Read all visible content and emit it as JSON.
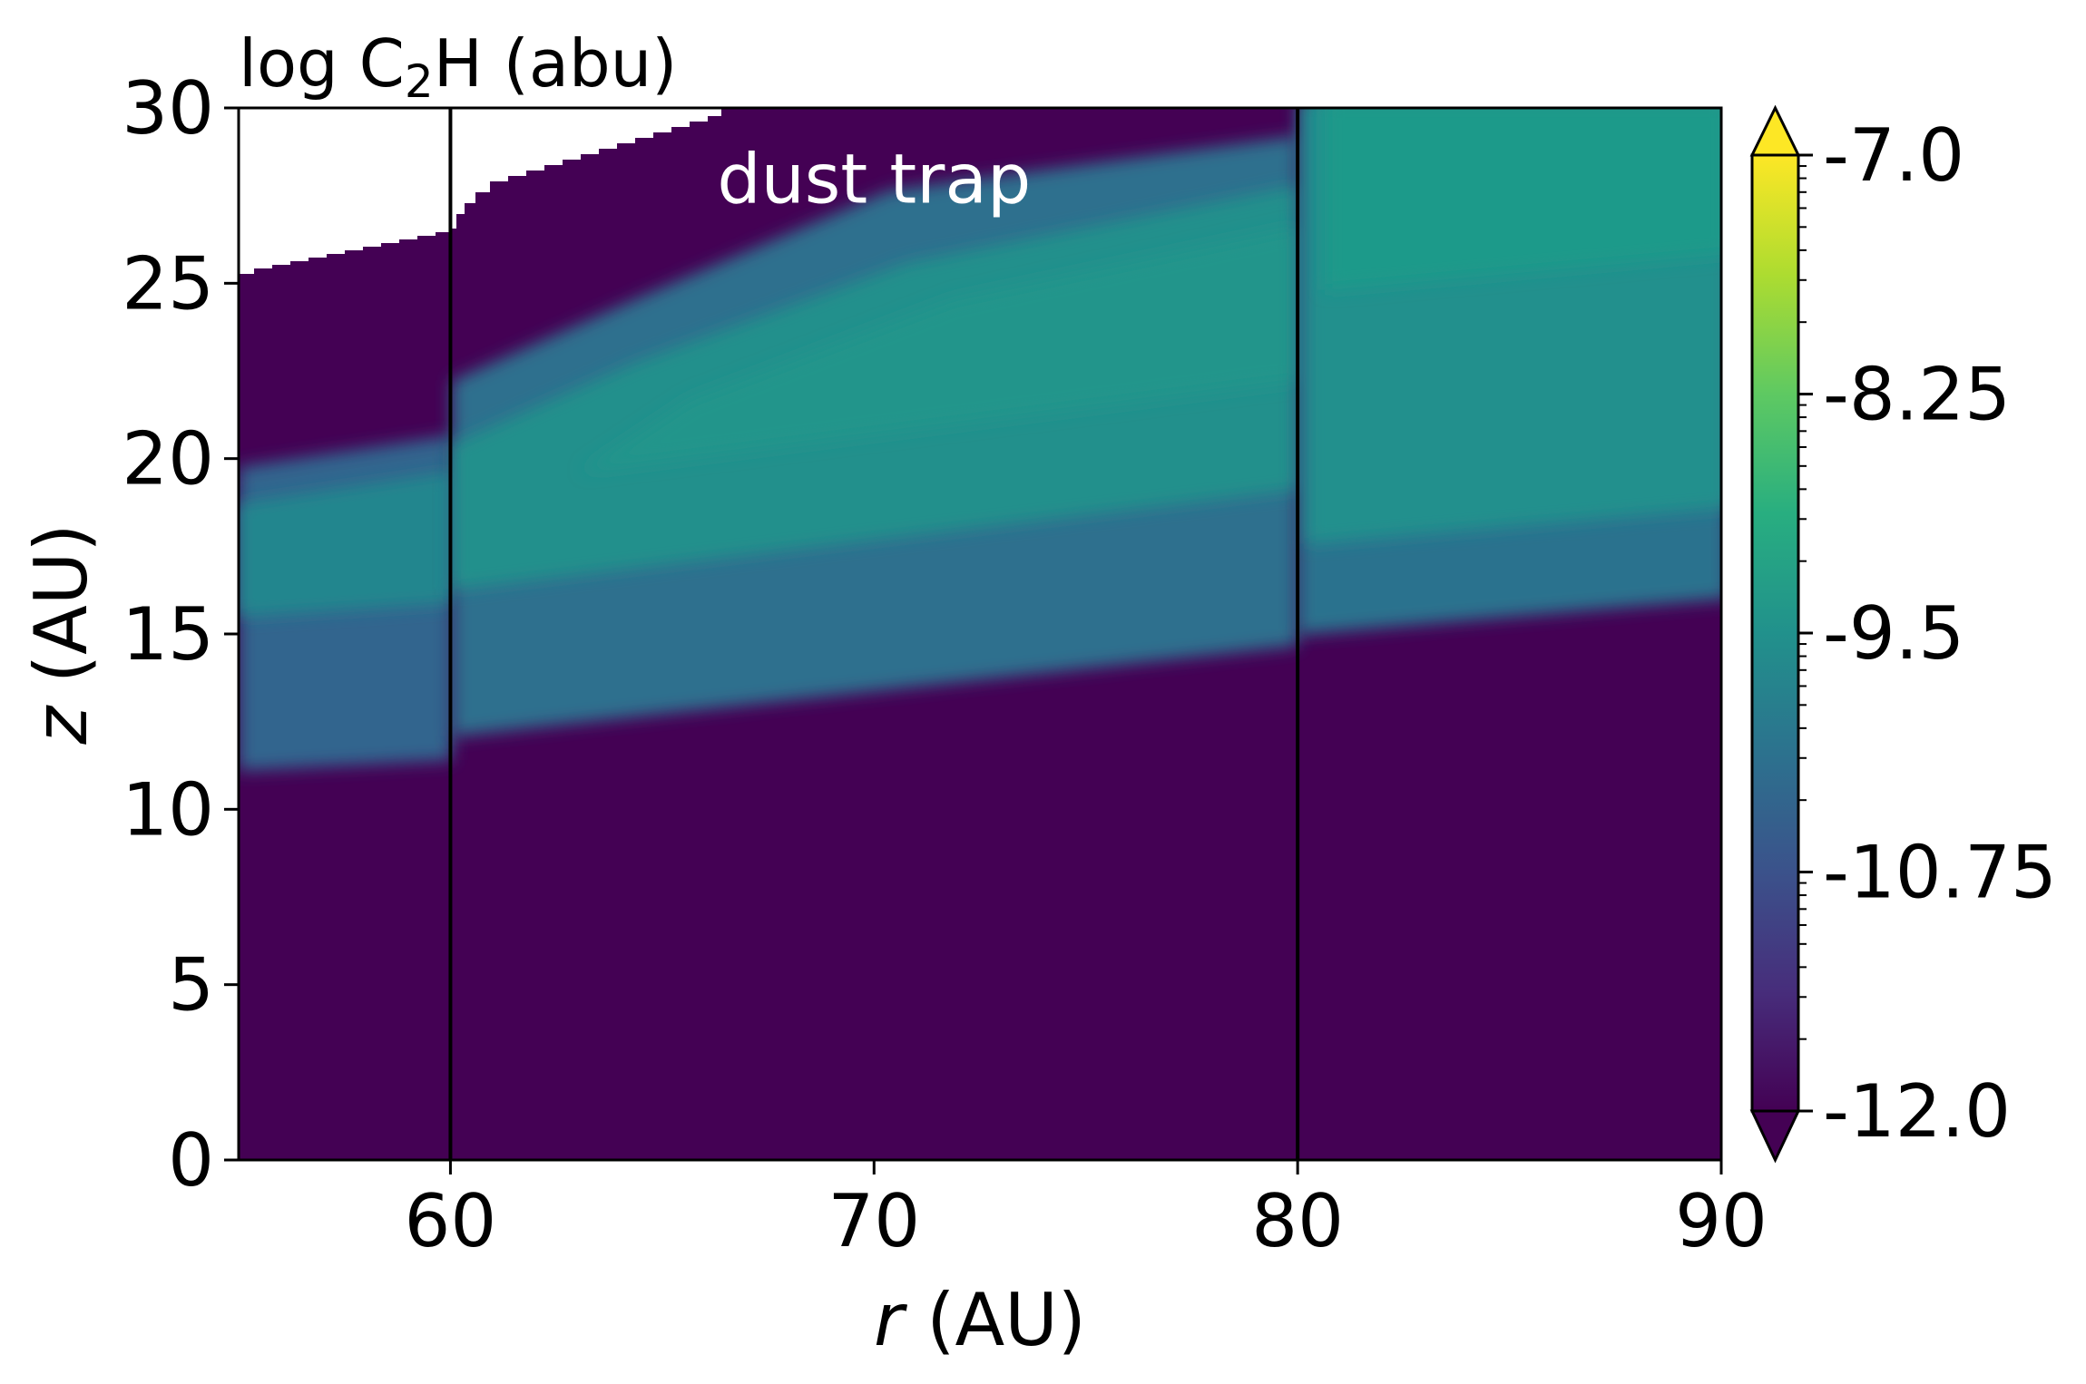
{
  "chart_data": {
    "type": "heatmap",
    "title": "log C₂H (abu)",
    "title_parts": {
      "prefix": "log C",
      "subscript": "2",
      "suffix": "H (abu)"
    },
    "xlabel": {
      "var": "r",
      "unit": " (AU)"
    },
    "ylabel": {
      "var": "z",
      "unit": " (AU)"
    },
    "xlim": [
      55,
      90
    ],
    "ylim": [
      0,
      30
    ],
    "xticks": [
      60,
      70,
      80,
      90
    ],
    "yticks": [
      0,
      5,
      10,
      15,
      20,
      25,
      30
    ],
    "colorbar": {
      "range": [
        -12.0,
        -7.0
      ],
      "ticks": [
        -7.0,
        -8.25,
        -9.5,
        -10.75,
        -12.0
      ],
      "tick_labels": [
        "-7.0",
        "-8.25",
        "-9.5",
        "-10.75",
        "-12.0"
      ],
      "colormap": "viridis",
      "extend": "both"
    },
    "vertical_lines_x": [
      60,
      80
    ],
    "annotation": {
      "text": "dust trap",
      "x": 70,
      "y": 28
    },
    "colors": {
      "low": "#440154",
      "mid": "#21908d",
      "high": "#fde725",
      "line": "#000000"
    }
  }
}
